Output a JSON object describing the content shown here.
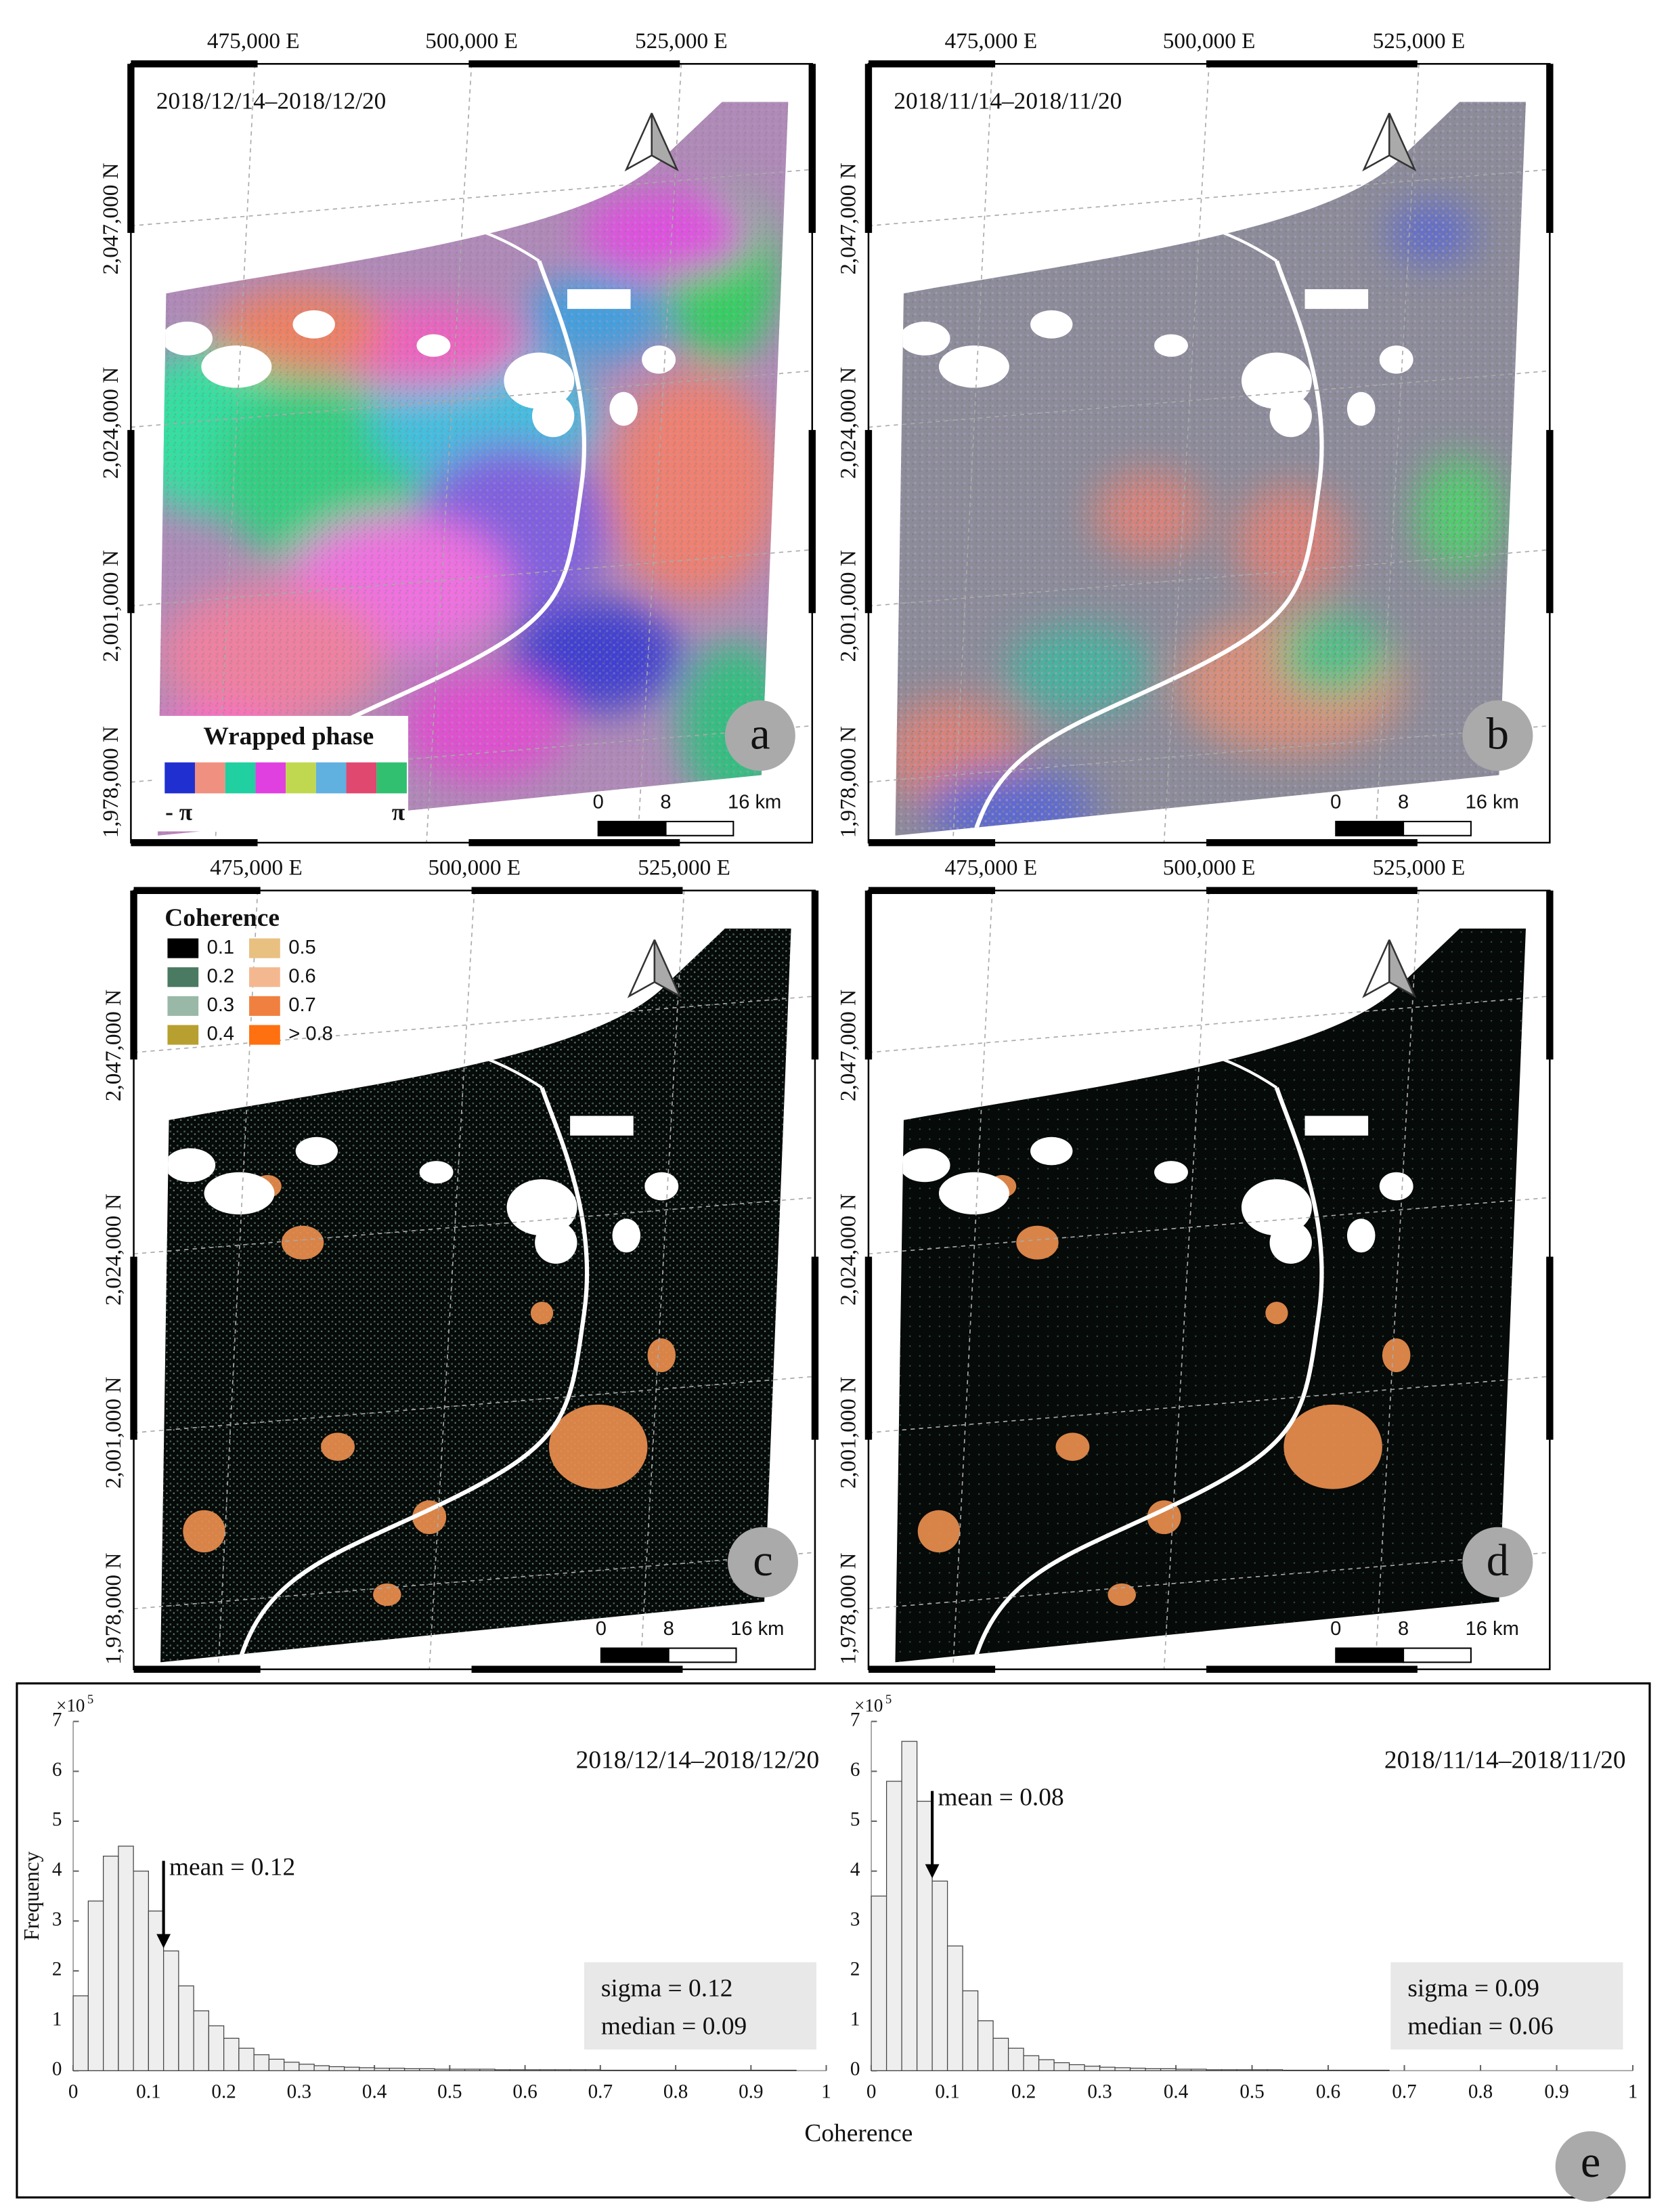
{
  "panels": [
    {
      "letter": "a",
      "date": "2018/12/14–2018/12/20",
      "easting": [
        "475,000 E",
        "500,000 E",
        "525,000 E"
      ],
      "northing": [
        "2,047,000 N",
        "2,024,000 N",
        "2,001,000 N",
        "1,978,000 N"
      ],
      "scale": [
        "0",
        "8",
        "16 km"
      ]
    },
    {
      "letter": "b",
      "date": "2018/11/14–2018/11/20",
      "easting": [
        "475,000 E",
        "500,000 E",
        "525,000 E"
      ],
      "northing": [
        "2,047,000 N",
        "2,024,000 N",
        "2,001,000 N",
        "1,978,000 N"
      ],
      "scale": [
        "0",
        "8",
        "16 km"
      ]
    },
    {
      "letter": "c",
      "easting": [
        "475,000 E",
        "500,000 E",
        "525,000 E"
      ],
      "northing": [
        "2,047,000 N",
        "2,024,000 N",
        "2,001,000 N",
        "1,978,000 N"
      ],
      "scale": [
        "0",
        "8",
        "16 km"
      ]
    },
    {
      "letter": "d",
      "easting": [
        "475,000 E",
        "500,000 E",
        "525,000 E"
      ],
      "northing": [
        "2,047,000 N",
        "2,024,000 N",
        "2,001,000 N",
        "1,978,000 N"
      ],
      "scale": [
        "0",
        "8",
        "16 km"
      ]
    }
  ],
  "phase_legend": {
    "title": "Wrapped phase",
    "colors": [
      "#2030d0",
      "#f09080",
      "#20d0a0",
      "#e040e0",
      "#c0d850",
      "#60b0e0",
      "#e04870",
      "#30c070"
    ],
    "min": "- π",
    "max": "π"
  },
  "coherence_legend": {
    "title": "Coherence",
    "items": [
      {
        "label": "0.1",
        "color": "#000000"
      },
      {
        "label": "0.2",
        "color": "#4a7a62"
      },
      {
        "label": "0.3",
        "color": "#9ab8a8"
      },
      {
        "label": "0.4",
        "color": "#b8a030"
      },
      {
        "label": "0.5",
        "color": "#e8c080"
      },
      {
        "label": "0.6",
        "color": "#f4b890"
      },
      {
        "label": "0.7",
        "color": "#f08040"
      },
      {
        "label": "> 0.8",
        "color": "#ff7010"
      }
    ]
  },
  "histogram_panel": {
    "x_label": "Coherence",
    "letter": "e"
  },
  "chart_data": [
    {
      "type": "histogram",
      "y_label": "Frequency",
      "y_multiplier": {
        "base": "×10",
        "exponent": "5"
      },
      "date": "2018/12/14–2018/12/20",
      "sigma": "sigma = 0.12",
      "median": "median = 0.09",
      "mean": {
        "value": 0.12,
        "label": "mean = 0.12"
      },
      "bins": [
        0,
        0.02,
        0.04,
        0.06,
        0.08,
        0.1,
        0.12,
        0.14,
        0.16,
        0.18,
        0.2,
        0.22,
        0.24,
        0.26,
        0.28,
        0.3,
        0.32,
        0.34,
        0.36,
        0.38,
        0.4,
        0.42,
        0.44,
        0.46,
        0.48,
        0.5,
        0.52,
        0.54,
        0.56,
        0.58,
        0.6,
        0.62,
        0.64,
        0.66,
        0.68,
        0.7,
        0.72,
        0.74,
        0.76,
        0.78,
        0.8,
        0.82,
        0.84,
        0.86,
        0.88,
        0.9,
        0.92,
        0.94,
        0.96,
        0.98,
        1
      ],
      "values": [
        1.5,
        3.4,
        4.3,
        4.5,
        4.0,
        3.2,
        2.4,
        1.7,
        1.2,
        0.9,
        0.65,
        0.45,
        0.32,
        0.23,
        0.17,
        0.13,
        0.1,
        0.08,
        0.07,
        0.06,
        0.05,
        0.05,
        0.04,
        0.04,
        0.03,
        0.03,
        0.03,
        0.03,
        0.02,
        0.02,
        0.02,
        0.02,
        0.02,
        0.02,
        0.02,
        0.01,
        0.01,
        0.01,
        0.01,
        0.01,
        0.01,
        0.01,
        0.01,
        0.01,
        0.01,
        0.01,
        0.01,
        0.01,
        0,
        0
      ],
      "color": "#eeeeee",
      "xlim": [
        0,
        1
      ],
      "ylim": [
        0,
        7
      ],
      "xticks": [
        0,
        0.1,
        0.2,
        0.3,
        0.4,
        0.5,
        0.6,
        0.7,
        0.8,
        0.9,
        1
      ],
      "yticks": [
        0,
        1,
        2,
        3,
        4,
        5,
        6,
        7
      ]
    },
    {
      "type": "histogram",
      "y_multiplier": {
        "base": "×10",
        "exponent": "5"
      },
      "date": "2018/11/14–2018/11/20",
      "sigma": "sigma = 0.09",
      "median": "median = 0.06",
      "mean": {
        "value": 0.08,
        "label": "mean = 0.08"
      },
      "bins": [
        0,
        0.02,
        0.04,
        0.06,
        0.08,
        0.1,
        0.12,
        0.14,
        0.16,
        0.18,
        0.2,
        0.22,
        0.24,
        0.26,
        0.28,
        0.3,
        0.32,
        0.34,
        0.36,
        0.38,
        0.4,
        0.42,
        0.44,
        0.46,
        0.48,
        0.5,
        0.52,
        0.54,
        0.56,
        0.58,
        0.6,
        0.62,
        0.64,
        0.66,
        0.68,
        0.7,
        0.72,
        0.74,
        0.76,
        0.78,
        0.8,
        0.82,
        0.84,
        0.86,
        0.88,
        0.9,
        0.92,
        0.94,
        0.96,
        0.98,
        1
      ],
      "values": [
        3.5,
        5.8,
        6.6,
        5.4,
        3.8,
        2.5,
        1.6,
        1.0,
        0.65,
        0.45,
        0.3,
        0.22,
        0.16,
        0.12,
        0.09,
        0.07,
        0.06,
        0.05,
        0.04,
        0.04,
        0.03,
        0.03,
        0.02,
        0.02,
        0.02,
        0.02,
        0.02,
        0.01,
        0.01,
        0.01,
        0.01,
        0.01,
        0.01,
        0.01,
        0,
        0,
        0,
        0,
        0,
        0,
        0,
        0,
        0,
        0,
        0,
        0,
        0,
        0,
        0,
        0
      ],
      "color": "#eeeeee",
      "xlim": [
        0,
        1
      ],
      "ylim": [
        0,
        7
      ],
      "xticks": [
        0,
        0.1,
        0.2,
        0.3,
        0.4,
        0.5,
        0.6,
        0.7,
        0.8,
        0.9,
        1
      ],
      "yticks": [
        0,
        1,
        2,
        3,
        4,
        5,
        6,
        7
      ]
    }
  ]
}
